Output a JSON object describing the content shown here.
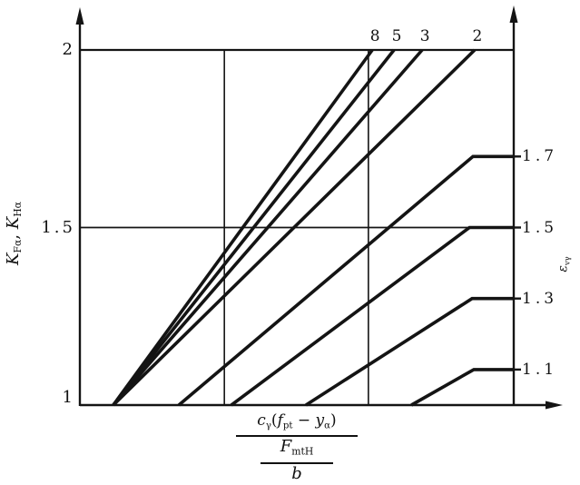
{
  "figure": {
    "background": "#ffffff",
    "ink": "#141414"
  },
  "chart_data": {
    "type": "line",
    "title": "",
    "description": "Transverse load factors K_Fα, K_Hα versus relative tooth deviation, curves for contact ratio values ε_vγ",
    "x_axis": {
      "label_rich": {
        "numerator": [
          {
            "t": "c",
            "i": true,
            "sub": "γ"
          },
          {
            "t": "("
          },
          {
            "t": "f",
            "i": true,
            "sub": "pt"
          },
          {
            "t": " − "
          },
          {
            "t": "y",
            "i": true,
            "sub": "α"
          },
          {
            "t": ")"
          }
        ],
        "denominator_top": [
          {
            "t": "F",
            "i": true,
            "sub": "mtH"
          }
        ],
        "denominator_bottom": [
          {
            "t": "b",
            "i": true
          }
        ]
      },
      "range": [
        0,
        1
      ],
      "gridlines": [
        0.333,
        0.665
      ],
      "tick_labels": []
    },
    "y_axis": {
      "label_rich": [
        {
          "t": "K",
          "i": true,
          "sub": "Fα"
        },
        {
          "t": ", "
        },
        {
          "t": "K",
          "i": true,
          "sub": "Hα"
        }
      ],
      "range": [
        1,
        2
      ],
      "ticks": [
        {
          "value": 2,
          "label": "2"
        },
        {
          "value": 1.5,
          "label": "1.5"
        },
        {
          "value": 1,
          "label": "1"
        }
      ],
      "gridlines": [
        2,
        1.5
      ]
    },
    "right_axis": {
      "label_rich": [
        {
          "t": "ε",
          "i": true,
          "sub": "vγ"
        }
      ],
      "tick_labels": [
        "1.7",
        "1.5",
        "1.3",
        "1.1"
      ]
    },
    "series": [
      {
        "name": "8",
        "label": "8",
        "label_position": "top",
        "points": [
          [
            0.077,
            1
          ],
          [
            0.674,
            2
          ]
        ]
      },
      {
        "name": "5",
        "label": "5",
        "label_position": "top",
        "points": [
          [
            0.077,
            1
          ],
          [
            0.724,
            2
          ]
        ]
      },
      {
        "name": "3",
        "label": "3",
        "label_position": "top",
        "points": [
          [
            0.077,
            1
          ],
          [
            0.789,
            2
          ]
        ]
      },
      {
        "name": "2",
        "label": "2",
        "label_position": "top",
        "points": [
          [
            0.077,
            1
          ],
          [
            0.91,
            2
          ]
        ]
      },
      {
        "name": "1.7",
        "label": "1.7",
        "label_position": "right",
        "points": [
          [
            0.228,
            1
          ],
          [
            0.906,
            1.7
          ],
          [
            1,
            1.7
          ]
        ]
      },
      {
        "name": "1.5",
        "label": "1.5",
        "label_position": "right",
        "points": [
          [
            0.349,
            1
          ],
          [
            0.898,
            1.5
          ],
          [
            1,
            1.5
          ]
        ]
      },
      {
        "name": "1.3",
        "label": "1.3",
        "label_position": "right",
        "points": [
          [
            0.521,
            1
          ],
          [
            0.904,
            1.3
          ],
          [
            1,
            1.3
          ]
        ]
      },
      {
        "name": "1.1",
        "label": "1.1",
        "label_position": "right",
        "points": [
          [
            0.764,
            1
          ],
          [
            0.908,
            1.1
          ],
          [
            1,
            1.1
          ]
        ]
      }
    ],
    "legend": "none",
    "grid": "partial"
  }
}
